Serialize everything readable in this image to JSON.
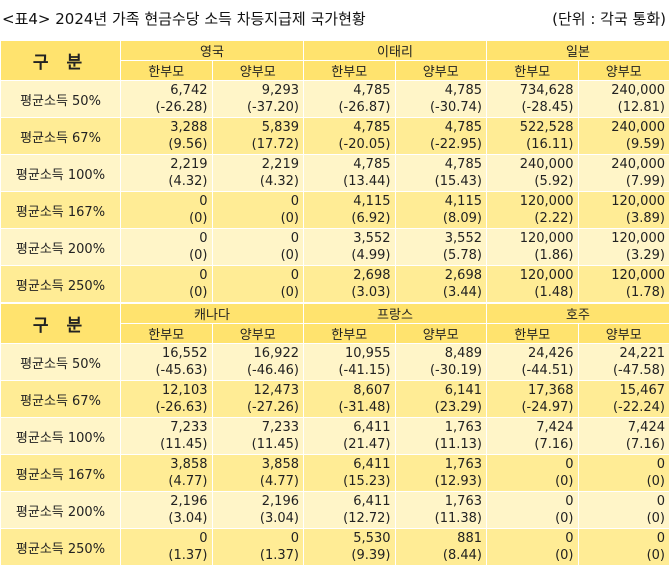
{
  "title": "<표4> 2024년 가족 현금수당 소득 차등지급제 국가현황",
  "unit": "(단위 : 각국 통화)",
  "gubun_label": "구 분",
  "sub_labels": [
    "한부모",
    "양부모"
  ],
  "row_labels": [
    "평균소득 50%",
    "평균소득 67%",
    "평균소득 100%",
    "평균소득 167%",
    "평균소득 200%",
    "평균소득 250%"
  ],
  "colors": {
    "header": "#FFE36E",
    "row_light": "#FFF5C8",
    "row_dark": "#FFEC95"
  },
  "tables": [
    {
      "countries": [
        "영국",
        "이태리",
        "일본"
      ],
      "rows": [
        [
          [
            "6,742",
            "(-26.28)"
          ],
          [
            "9,293",
            "(-37.20)"
          ],
          [
            "4,785",
            "(-26.87)"
          ],
          [
            "4,785",
            "(-30.74)"
          ],
          [
            "734,628",
            "(-28.45)"
          ],
          [
            "240,000",
            "(12.81)"
          ]
        ],
        [
          [
            "3,288",
            "(9.56)"
          ],
          [
            "5,839",
            "(17.72)"
          ],
          [
            "4,785",
            "(-20.05)"
          ],
          [
            "4,785",
            "(-22.95)"
          ],
          [
            "522,528",
            "(16.11)"
          ],
          [
            "240,000",
            "(9.59)"
          ]
        ],
        [
          [
            "2,219",
            "(4.32)"
          ],
          [
            "2,219",
            "(4.32)"
          ],
          [
            "4,785",
            "(13.44)"
          ],
          [
            "4,785",
            "(15.43)"
          ],
          [
            "240,000",
            "(5.92)"
          ],
          [
            "240,000",
            "(7.99)"
          ]
        ],
        [
          [
            "0",
            "(0)"
          ],
          [
            "0",
            "(0)"
          ],
          [
            "4,115",
            "(6.92)"
          ],
          [
            "4,115",
            "(8.09)"
          ],
          [
            "120,000",
            "(2.22)"
          ],
          [
            "120,000",
            "(3.89)"
          ]
        ],
        [
          [
            "0",
            "(0)"
          ],
          [
            "0",
            "(0)"
          ],
          [
            "3,552",
            "(4.99)"
          ],
          [
            "3,552",
            "(5.78)"
          ],
          [
            "120,000",
            "(1.86)"
          ],
          [
            "120,000",
            "(3.29)"
          ]
        ],
        [
          [
            "0",
            "(0)"
          ],
          [
            "0",
            "(0)"
          ],
          [
            "2,698",
            "(3.03)"
          ],
          [
            "2,698",
            "(3.44)"
          ],
          [
            "120,000",
            "(1.48)"
          ],
          [
            "120,000",
            "(1.78)"
          ]
        ]
      ]
    },
    {
      "countries": [
        "캐나다",
        "프랑스",
        "호주"
      ],
      "rows": [
        [
          [
            "16,552",
            "(-45.63)"
          ],
          [
            "16,922",
            "(-46.46)"
          ],
          [
            "10,955",
            "(-41.15)"
          ],
          [
            "8,489",
            "(-30.19)"
          ],
          [
            "24,426",
            "(-44.51)"
          ],
          [
            "24,221",
            "(-47.58)"
          ]
        ],
        [
          [
            "12,103",
            "(-26.63)"
          ],
          [
            "12,473",
            "(-27.26)"
          ],
          [
            "8,607",
            "(-31.48)"
          ],
          [
            "6,141",
            "(23.29)"
          ],
          [
            "17,368",
            "(-24.97)"
          ],
          [
            "15,467",
            "(-22.24)"
          ]
        ],
        [
          [
            "7,233",
            "(11.45)"
          ],
          [
            "7,233",
            "(11.45)"
          ],
          [
            "6,411",
            "(21.47)"
          ],
          [
            "1,763",
            "(11.13)"
          ],
          [
            "7,424",
            "(7.16)"
          ],
          [
            "7,424",
            "(7.16)"
          ]
        ],
        [
          [
            "3,858",
            "(4.77)"
          ],
          [
            "3,858",
            "(4.77)"
          ],
          [
            "6,411",
            "(15.23)"
          ],
          [
            "1,763",
            "(12.93)"
          ],
          [
            "0",
            "(0)"
          ],
          [
            "0",
            "(0)"
          ]
        ],
        [
          [
            "2,196",
            "(3.04)"
          ],
          [
            "2,196",
            "(3.04)"
          ],
          [
            "6,411",
            "(12.72)"
          ],
          [
            "1,763",
            "(11.38)"
          ],
          [
            "0",
            "(0)"
          ],
          [
            "0",
            "(0)"
          ]
        ],
        [
          [
            "0",
            "(1.37)"
          ],
          [
            "0",
            "(1.37)"
          ],
          [
            "5,530",
            "(9.39)"
          ],
          [
            "881",
            "(8.44)"
          ],
          [
            "0",
            "(0)"
          ],
          [
            "0",
            "(0)"
          ]
        ]
      ]
    }
  ]
}
